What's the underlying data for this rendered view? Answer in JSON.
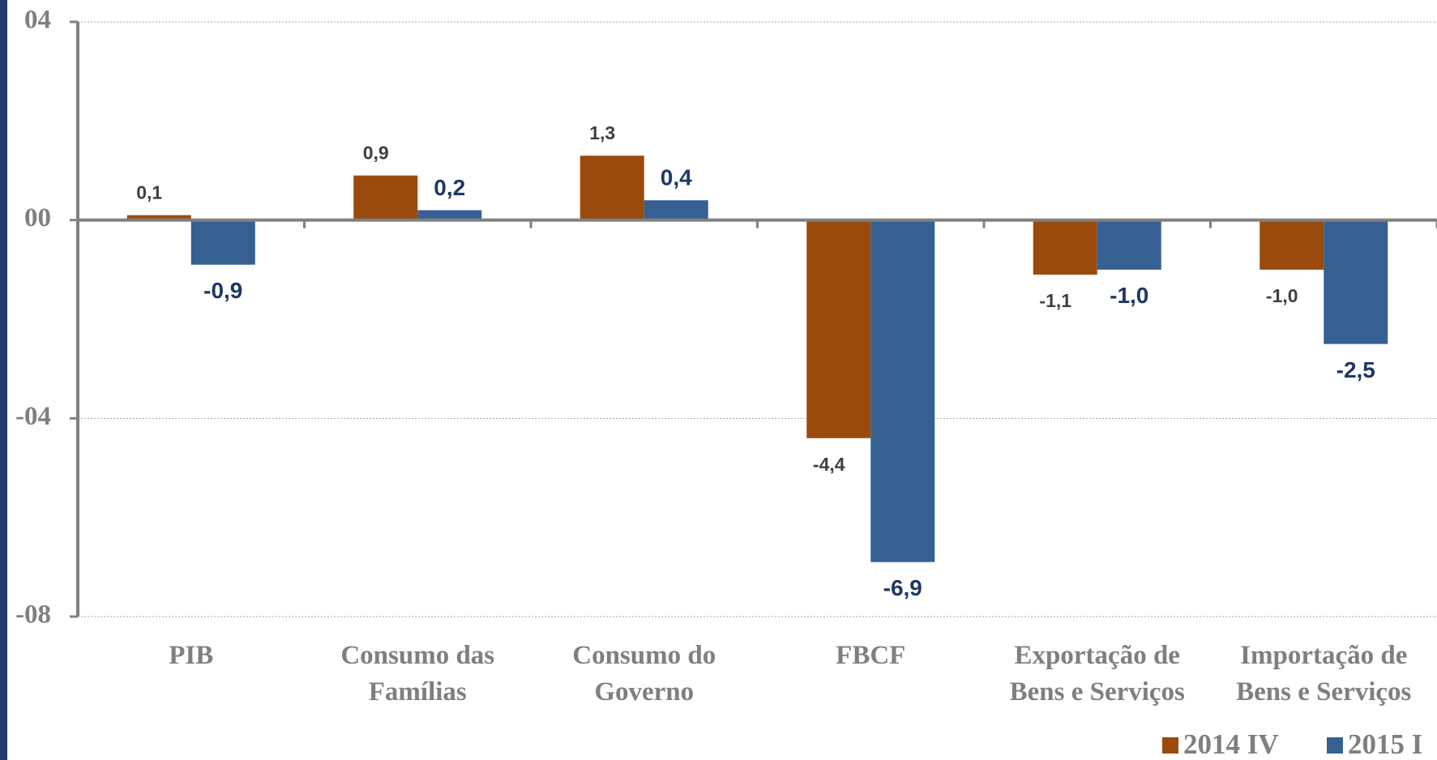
{
  "chart_data": {
    "type": "bar",
    "categories": [
      "PIB",
      "Consumo das\nFamílias",
      "Consumo do\nGoverno",
      "FBCF",
      "Exportação de\nBens e Serviços",
      "Importação de\nBens e Serviços"
    ],
    "series": [
      {
        "name": "2014 IV",
        "color": "#9a4a0c",
        "values": [
          0.1,
          0.9,
          1.3,
          -4.4,
          -1.1,
          -1.0
        ],
        "value_labels": [
          "0,1",
          "0,9",
          "1,3",
          "-4,4",
          "-1,1",
          "-1,0"
        ]
      },
      {
        "name": "2015 I",
        "color": "#376092",
        "values": [
          -0.9,
          0.2,
          0.4,
          -6.9,
          -1.0,
          -2.5
        ],
        "value_labels": [
          "-0,9",
          "0,2",
          "0,4",
          "-6,9",
          "-1,0",
          "-2,5"
        ]
      }
    ],
    "ylim": [
      -8,
      4
    ],
    "yticks": [
      {
        "value": 4,
        "label": "04"
      },
      {
        "value": 0,
        "label": "00"
      },
      {
        "value": -4,
        "label": "-04"
      },
      {
        "value": -8,
        "label": "-08"
      }
    ],
    "grid": true
  }
}
